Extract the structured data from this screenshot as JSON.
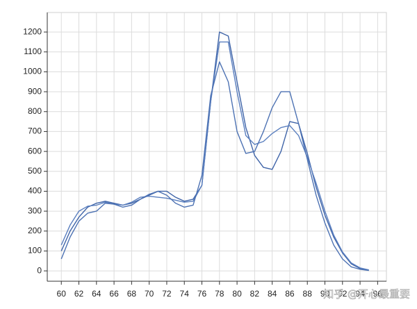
{
  "chart_data": {
    "type": "line",
    "x": [
      60,
      61,
      62,
      63,
      64,
      65,
      66,
      67,
      68,
      69,
      70,
      71,
      72,
      73,
      74,
      75,
      76,
      77,
      78,
      79,
      80,
      81,
      82,
      83,
      84,
      85,
      86,
      87,
      88,
      89,
      90,
      91,
      92,
      93,
      94,
      95
    ],
    "series": [
      {
        "color": "#3f64a8",
        "values": [
          100,
          200,
          270,
          320,
          340,
          350,
          340,
          330,
          340,
          360,
          380,
          400,
          400,
          370,
          350,
          360,
          430,
          850,
          1200,
          1180,
          950,
          720,
          580,
          520,
          510,
          600,
          750,
          740,
          590,
          420,
          280,
          170,
          90,
          35,
          12,
          3
        ]
      },
      {
        "color": "#5a7fbf",
        "values": [
          130,
          230,
          300,
          325,
          330,
          345,
          335,
          330,
          345,
          370,
          375,
          370,
          365,
          355,
          345,
          350,
          430,
          850,
          1150,
          1150,
          900,
          680,
          635,
          650,
          690,
          720,
          730,
          680,
          570,
          440,
          300,
          180,
          95,
          40,
          15,
          5
        ]
      },
      {
        "color": "#4d72b3",
        "values": [
          60,
          170,
          250,
          290,
          300,
          340,
          335,
          320,
          330,
          360,
          385,
          400,
          380,
          340,
          320,
          330,
          480,
          880,
          1050,
          950,
          700,
          590,
          600,
          700,
          820,
          900,
          900,
          740,
          560,
          380,
          240,
          130,
          60,
          20,
          8,
          2
        ]
      }
    ],
    "xlim": [
      58.4,
      97
    ],
    "ylim": [
      -52,
      1298
    ],
    "xticks": [
      60,
      62,
      64,
      66,
      68,
      70,
      72,
      74,
      76,
      78,
      80,
      82,
      84,
      86,
      88,
      90,
      92,
      94,
      96
    ],
    "yticks": [
      0,
      100,
      200,
      300,
      400,
      500,
      600,
      700,
      800,
      900,
      1000,
      1100,
      1200
    ],
    "grid": true,
    "watermark": "知乎 @开心最重要"
  }
}
